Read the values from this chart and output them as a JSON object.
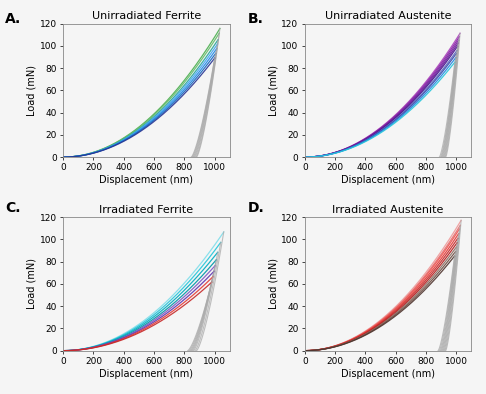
{
  "panels": [
    {
      "label": "A.",
      "title": "Unirradiated Ferrite",
      "curves": [
        {
          "color": "#4caf50",
          "stiffness": 0.000108,
          "max_disp": 1035,
          "unload_disp": 880
        },
        {
          "color": "#66bb6a",
          "stiffness": 0.000105,
          "max_disp": 1030,
          "unload_disp": 875
        },
        {
          "color": "#26a69a",
          "stiffness": 0.000101,
          "max_disp": 1022,
          "unload_disp": 868
        },
        {
          "color": "#42a5f5",
          "stiffness": 9.8e-05,
          "max_disp": 1018,
          "unload_disp": 862
        },
        {
          "color": "#1e88e5",
          "stiffness": 9.5e-05,
          "max_disp": 1012,
          "unload_disp": 856
        },
        {
          "color": "#1565c0",
          "stiffness": 9.2e-05,
          "max_disp": 1006,
          "unload_disp": 850
        },
        {
          "color": "#283593",
          "stiffness": 8.9e-05,
          "max_disp": 1000,
          "unload_disp": 845
        }
      ]
    },
    {
      "label": "B.",
      "title": "Unirradiated Austenite",
      "curves": [
        {
          "color": "#ab47bc",
          "stiffness": 0.000106,
          "max_disp": 1025,
          "unload_disp": 930
        },
        {
          "color": "#8e24aa",
          "stiffness": 0.000104,
          "max_disp": 1020,
          "unload_disp": 925
        },
        {
          "color": "#7b1fa2",
          "stiffness": 0.000102,
          "max_disp": 1015,
          "unload_disp": 920
        },
        {
          "color": "#6a1b9a",
          "stiffness": 0.0001,
          "max_disp": 1012,
          "unload_disp": 915
        },
        {
          "color": "#4a148c",
          "stiffness": 9.8e-05,
          "max_disp": 1008,
          "unload_disp": 910
        },
        {
          "color": "#5c6bc0",
          "stiffness": 9.5e-05,
          "max_disp": 1004,
          "unload_disp": 905
        },
        {
          "color": "#3949ab",
          "stiffness": 9.3e-05,
          "max_disp": 1000,
          "unload_disp": 900
        },
        {
          "color": "#1e88e5",
          "stiffness": 9e-05,
          "max_disp": 996,
          "unload_disp": 895
        },
        {
          "color": "#26c6da",
          "stiffness": 8.7e-05,
          "max_disp": 990,
          "unload_disp": 888
        }
      ]
    },
    {
      "label": "C.",
      "title": "Irradiated Ferrite",
      "curves": [
        {
          "color": "#80deea",
          "stiffness": 9.5e-05,
          "max_disp": 1060,
          "unload_disp": 880
        },
        {
          "color": "#26c6da",
          "stiffness": 9e-05,
          "max_disp": 1040,
          "unload_disp": 870
        },
        {
          "color": "#00acc1",
          "stiffness": 8.5e-05,
          "max_disp": 1020,
          "unload_disp": 860
        },
        {
          "color": "#0097a7",
          "stiffness": 8e-05,
          "max_disp": 1010,
          "unload_disp": 852
        },
        {
          "color": "#7e57c2",
          "stiffness": 7.6e-05,
          "max_disp": 1002,
          "unload_disp": 845
        },
        {
          "color": "#5e35b1",
          "stiffness": 7.2e-05,
          "max_disp": 995,
          "unload_disp": 838
        },
        {
          "color": "#e53935",
          "stiffness": 6.8e-05,
          "max_disp": 988,
          "unload_disp": 830
        },
        {
          "color": "#c62828",
          "stiffness": 6.4e-05,
          "max_disp": 980,
          "unload_disp": 822
        }
      ]
    },
    {
      "label": "D.",
      "title": "Irradiated Austenite",
      "curves": [
        {
          "color": "#ef9a9a",
          "stiffness": 0.00011,
          "max_disp": 1032,
          "unload_disp": 930
        },
        {
          "color": "#e57373",
          "stiffness": 0.000107,
          "max_disp": 1026,
          "unload_disp": 924
        },
        {
          "color": "#ef5350",
          "stiffness": 0.000105,
          "max_disp": 1020,
          "unload_disp": 918
        },
        {
          "color": "#e53935",
          "stiffness": 0.000102,
          "max_disp": 1015,
          "unload_disp": 912
        },
        {
          "color": "#c62828",
          "stiffness": 9.9e-05,
          "max_disp": 1010,
          "unload_disp": 906
        },
        {
          "color": "#b71c1c",
          "stiffness": 9.6e-05,
          "max_disp": 1005,
          "unload_disp": 900
        },
        {
          "color": "#8d6e63",
          "stiffness": 9.3e-05,
          "max_disp": 1000,
          "unload_disp": 894
        },
        {
          "color": "#6d4c41",
          "stiffness": 9e-05,
          "max_disp": 994,
          "unload_disp": 887
        },
        {
          "color": "#4e342e",
          "stiffness": 8.7e-05,
          "max_disp": 988,
          "unload_disp": 880
        }
      ]
    }
  ],
  "xlim": [
    0,
    1100
  ],
  "ylim": [
    0,
    120
  ],
  "xticks": [
    0,
    200,
    400,
    600,
    800,
    1000
  ],
  "yticks": [
    0,
    20,
    40,
    60,
    80,
    100,
    120
  ],
  "xlabel": "Displacement (nm)",
  "ylabel": "Load (mN)",
  "label_fontsize": 7,
  "title_fontsize": 8,
  "tick_fontsize": 6.5,
  "background_color": "#f5f5f5",
  "unload_color": "#aaaaaa"
}
